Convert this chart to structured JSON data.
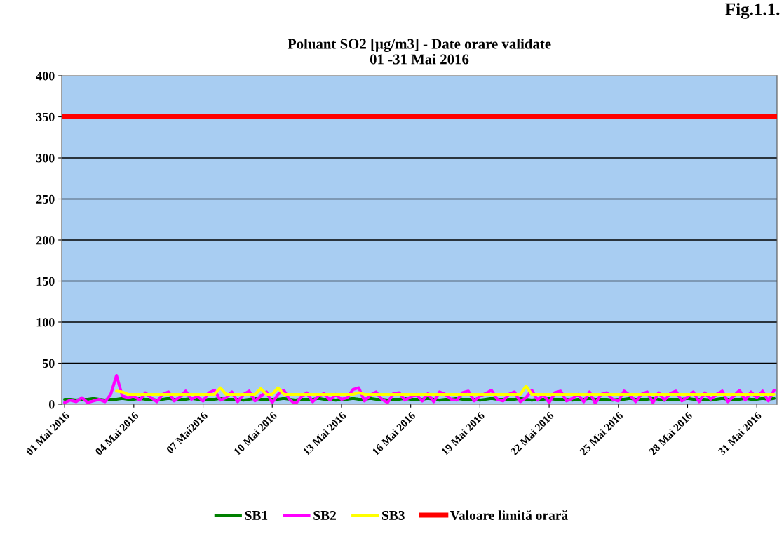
{
  "chart_data": {
    "type": "line",
    "title": "Poluant SO2 [µg/m3] - Date orare validate\n01 -31 Mai 2016",
    "annotations": [
      "Fig.1.1."
    ],
    "categories": [
      "01 Mai 2016",
      null,
      null,
      null,
      null,
      null,
      null,
      null,
      null,
      null,
      null,
      null,
      "04 Mai 2016",
      null,
      null,
      null,
      null,
      null,
      null,
      null,
      null,
      null,
      null,
      null,
      "07 Mai2016",
      null,
      null,
      null,
      null,
      null,
      null,
      null,
      null,
      null,
      null,
      null,
      "10 Mai 2016",
      null,
      null,
      null,
      null,
      null,
      null,
      null,
      null,
      null,
      null,
      null,
      "13 Mai 2016",
      null,
      null,
      null,
      null,
      null,
      null,
      null,
      null,
      null,
      null,
      null,
      "16 Mai 2016",
      null,
      null,
      null,
      null,
      null,
      null,
      null,
      null,
      null,
      null,
      null,
      "19 Mai 2016",
      null,
      null,
      null,
      null,
      null,
      null,
      null,
      null,
      null,
      null,
      null,
      "22 Mai 2016",
      null,
      null,
      null,
      null,
      null,
      null,
      null,
      null,
      null,
      null,
      null,
      "25 Mai 2016",
      null,
      null,
      null,
      null,
      null,
      null,
      null,
      null,
      null,
      null,
      null,
      "28 Mai 2016",
      null,
      null,
      null,
      null,
      null,
      null,
      null,
      null,
      null,
      null,
      null,
      "31 Mai 2016",
      null,
      null,
      null
    ],
    "series": [
      {
        "name": "SB1",
        "color": "#008000",
        "values": [
          6,
          6,
          5,
          6,
          6,
          7,
          6,
          5,
          6,
          6,
          7,
          6,
          6,
          7,
          6,
          6,
          5,
          6,
          7,
          6,
          6,
          6,
          7,
          6,
          5,
          6,
          6,
          7,
          6,
          6,
          6,
          5,
          6,
          7,
          6,
          6,
          6,
          6,
          7,
          6,
          5,
          6,
          6,
          6,
          7,
          6,
          6,
          5,
          6,
          6,
          7,
          6,
          6,
          7,
          6,
          6,
          5,
          6,
          6,
          7,
          6,
          6,
          6,
          7,
          6,
          5,
          6,
          6,
          7,
          6,
          6,
          6,
          5,
          6,
          7,
          6,
          6,
          6,
          6,
          7,
          6,
          5,
          6,
          6,
          7,
          6,
          6,
          6,
          5,
          6,
          6,
          7,
          6,
          6,
          6,
          5,
          6,
          6,
          7,
          6,
          6,
          6,
          7,
          6,
          5,
          6,
          6,
          6,
          7,
          6,
          6,
          6,
          5,
          6,
          7,
          6,
          6,
          6,
          7,
          6,
          6,
          7,
          6,
          7
        ]
      },
      {
        "name": "SB2",
        "color": "#ff00ff",
        "values": [
          2,
          5,
          3,
          8,
          2,
          4,
          6,
          3,
          12,
          35,
          10,
          8,
          10,
          5,
          14,
          8,
          3,
          12,
          15,
          4,
          9,
          16,
          6,
          10,
          4,
          14,
          17,
          5,
          8,
          15,
          3,
          12,
          16,
          4,
          10,
          15,
          2,
          12,
          17,
          6,
          0,
          9,
          14,
          3,
          10,
          13,
          5,
          12,
          6,
          8,
          18,
          20,
          4,
          11,
          15,
          6,
          2,
          13,
          14,
          5,
          9,
          12,
          4,
          13,
          3,
          15,
          12,
          6,
          5,
          14,
          16,
          4,
          10,
          13,
          17,
          6,
          4,
          12,
          15,
          3,
          8,
          17,
          5,
          12,
          2,
          14,
          16,
          4,
          7,
          12,
          3,
          15,
          1,
          12,
          14,
          6,
          4,
          16,
          11,
          3,
          12,
          15,
          2,
          14,
          5,
          13,
          16,
          4,
          9,
          15,
          3,
          14,
          6,
          12,
          16,
          3,
          10,
          17,
          5,
          15,
          8,
          16,
          4,
          17
        ]
      },
      {
        "name": "SB3",
        "color": "#ffff00",
        "values": [
          null,
          null,
          null,
          null,
          null,
          null,
          null,
          null,
          null,
          16,
          15,
          12,
          12,
          12,
          12,
          12,
          12,
          12,
          12,
          12,
          12,
          12,
          12,
          12,
          12,
          12,
          12,
          20,
          12,
          12,
          12,
          12,
          12,
          12,
          19,
          12,
          12,
          20,
          12,
          12,
          12,
          12,
          12,
          12,
          12,
          12,
          12,
          12,
          12,
          12,
          12,
          14,
          12,
          12,
          12,
          12,
          12,
          12,
          12,
          12,
          12,
          12,
          12,
          12,
          12,
          12,
          12,
          12,
          12,
          12,
          12,
          12,
          12,
          12,
          12,
          12,
          12,
          12,
          12,
          12,
          22,
          12,
          12,
          12,
          12,
          12,
          12,
          12,
          12,
          12,
          12,
          12,
          12,
          12,
          12,
          12,
          12,
          12,
          12,
          12,
          12,
          12,
          12,
          12,
          12,
          12,
          12,
          12,
          12,
          12,
          12,
          12,
          12,
          12,
          12,
          12,
          12,
          12,
          12,
          12,
          12,
          12,
          12,
          12
        ]
      }
    ],
    "ref_lines": [
      {
        "axis": "y",
        "value": 350,
        "label": "Valoare limită orară",
        "color": "#ff0000"
      }
    ],
    "ylim": [
      0,
      400
    ],
    "yticks": [
      0,
      50,
      100,
      150,
      200,
      250,
      300,
      350,
      400
    ],
    "grid": "y",
    "legend": "bottom",
    "marker": "none",
    "line_style": "solid"
  }
}
